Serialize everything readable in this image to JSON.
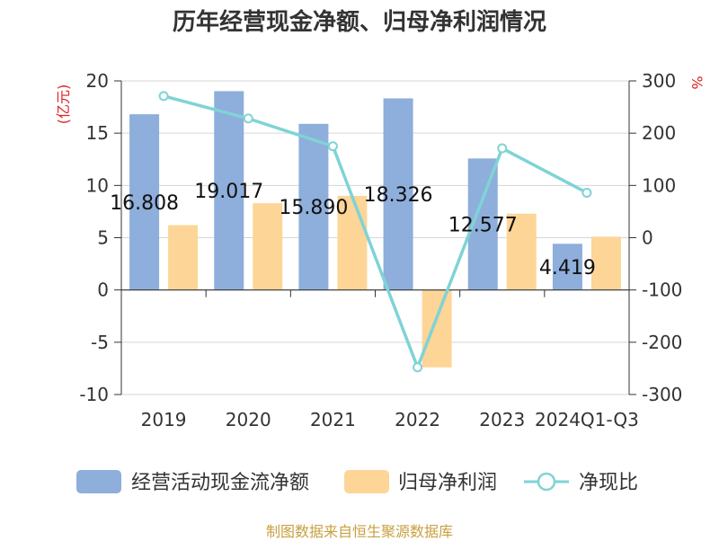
{
  "title": "历年经营现金净额、归母净利润情况",
  "source": "制图数据来自恒生聚源数据库",
  "chart_data": {
    "type": "bar",
    "title": "历年经营现金净额、归母净利润情况",
    "categories": [
      "2019",
      "2020",
      "2021",
      "2022",
      "2023",
      "2024Q1-Q3"
    ],
    "y_left": {
      "unit": "(亿元)",
      "min": -10,
      "max": 20,
      "step": 5
    },
    "y_right": {
      "unit": "%",
      "min": -300,
      "max": 300,
      "step": 100
    },
    "series": [
      {
        "name": "经营活动现金流净额",
        "axis": "left",
        "kind": "bar",
        "color": "#8eaedb",
        "values": [
          16.808,
          19.017,
          15.89,
          18.326,
          12.577,
          4.419
        ],
        "labels": [
          "16.808",
          "19.017",
          "15.890",
          "18.326",
          "12.577",
          "4.419"
        ]
      },
      {
        "name": "归母净利润",
        "axis": "left",
        "kind": "bar",
        "color": "#fdd597",
        "values": [
          6.2,
          8.3,
          9.0,
          -7.4,
          7.3,
          5.1
        ]
      },
      {
        "name": "净现比",
        "axis": "right",
        "kind": "line",
        "color": "#7fd3d6",
        "values": [
          271,
          228,
          175,
          -248,
          171,
          86
        ]
      }
    ],
    "legend_position": "bottom",
    "grid": true
  }
}
